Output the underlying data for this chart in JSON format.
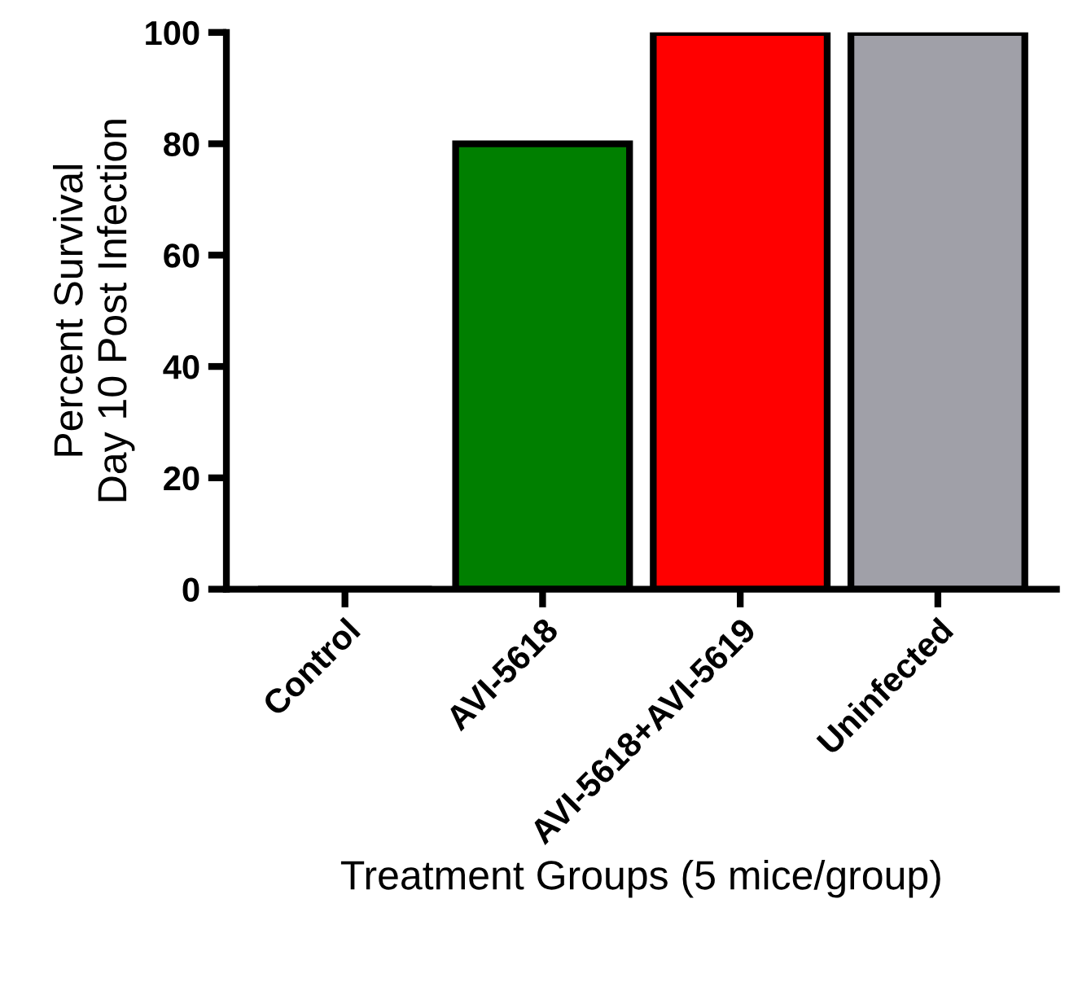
{
  "chart_data": {
    "type": "bar",
    "xlabel": "Treatment Groups (5 mice/group)",
    "ylabel": "Percent Survival\nDay 10 Post Infection",
    "categories": [
      "Control",
      "AVI-5618",
      "AVI-5618+AVI-5619",
      "Uninfected"
    ],
    "values": [
      0,
      80,
      100,
      100
    ],
    "colors": [
      "#000000",
      "#007f00",
      "#ff0000",
      "#a0a0a8"
    ],
    "ylim": [
      0,
      100
    ],
    "yticks": [
      0,
      20,
      40,
      60,
      80,
      100
    ],
    "grid": false,
    "legend": false
  }
}
